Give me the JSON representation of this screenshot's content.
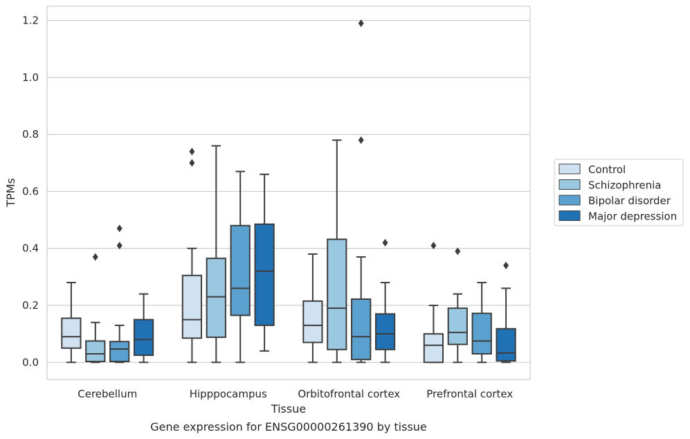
{
  "chart_data": {
    "type": "box",
    "title": "",
    "caption": "Gene expression for ENSG00000261390 by tissue",
    "xlabel": "Tissue",
    "ylabel": "TPMs",
    "ylim": [
      -0.06,
      1.25
    ],
    "yticks": [
      0.0,
      0.2,
      0.4,
      0.6,
      0.8,
      1.0,
      1.2
    ],
    "ytick_labels": [
      "0.0",
      "0.2",
      "0.4",
      "0.6",
      "0.8",
      "1.0",
      "1.2"
    ],
    "grid": "horizontal",
    "legend_position": "right",
    "categories": [
      "Cerebellum",
      "Hipppocampus",
      "Orbitofrontal cortex",
      "Prefrontal cortex"
    ],
    "series": [
      {
        "name": "Control",
        "color": "#d0e1f2",
        "boxes": [
          {
            "whisker_low": 0.0,
            "q1": 0.05,
            "median": 0.09,
            "q3": 0.155,
            "whisker_high": 0.28,
            "outliers": []
          },
          {
            "whisker_low": 0.0,
            "q1": 0.085,
            "median": 0.15,
            "q3": 0.305,
            "whisker_high": 0.4,
            "outliers": [
              0.7,
              0.74
            ]
          },
          {
            "whisker_low": 0.0,
            "q1": 0.07,
            "median": 0.13,
            "q3": 0.215,
            "whisker_high": 0.38,
            "outliers": []
          },
          {
            "whisker_low": 0.0,
            "q1": 0.0,
            "median": 0.06,
            "q3": 0.1,
            "whisker_high": 0.2,
            "outliers": [
              0.41
            ]
          }
        ]
      },
      {
        "name": "Schizophrenia",
        "color": "#9ac8e0",
        "boxes": [
          {
            "whisker_low": 0.0,
            "q1": 0.003,
            "median": 0.03,
            "q3": 0.075,
            "whisker_high": 0.14,
            "outliers": [
              0.37
            ]
          },
          {
            "whisker_low": 0.0,
            "q1": 0.088,
            "median": 0.23,
            "q3": 0.365,
            "whisker_high": 0.76,
            "outliers": []
          },
          {
            "whisker_low": 0.0,
            "q1": 0.045,
            "median": 0.19,
            "q3": 0.432,
            "whisker_high": 0.78,
            "outliers": []
          },
          {
            "whisker_low": 0.0,
            "q1": 0.063,
            "median": 0.105,
            "q3": 0.19,
            "whisker_high": 0.24,
            "outliers": [
              0.39
            ]
          }
        ]
      },
      {
        "name": "Bipolar disorder",
        "color": "#5aa1cf",
        "boxes": [
          {
            "whisker_low": 0.0,
            "q1": 0.003,
            "median": 0.047,
            "q3": 0.073,
            "whisker_high": 0.13,
            "outliers": [
              0.41,
              0.47
            ]
          },
          {
            "whisker_low": 0.0,
            "q1": 0.165,
            "median": 0.26,
            "q3": 0.48,
            "whisker_high": 0.67,
            "outliers": []
          },
          {
            "whisker_low": 0.0,
            "q1": 0.01,
            "median": 0.09,
            "q3": 0.222,
            "whisker_high": 0.37,
            "outliers": [
              0.78,
              1.19
            ]
          },
          {
            "whisker_low": 0.0,
            "q1": 0.03,
            "median": 0.075,
            "q3": 0.172,
            "whisker_high": 0.28,
            "outliers": []
          }
        ]
      },
      {
        "name": "Major depression",
        "color": "#2171b5",
        "boxes": [
          {
            "whisker_low": 0.0,
            "q1": 0.025,
            "median": 0.08,
            "q3": 0.15,
            "whisker_high": 0.24,
            "outliers": []
          },
          {
            "whisker_low": 0.04,
            "q1": 0.13,
            "median": 0.32,
            "q3": 0.485,
            "whisker_high": 0.66,
            "outliers": []
          },
          {
            "whisker_low": 0.0,
            "q1": 0.045,
            "median": 0.1,
            "q3": 0.17,
            "whisker_high": 0.28,
            "outliers": [
              0.42
            ]
          },
          {
            "whisker_low": 0.0,
            "q1": 0.005,
            "median": 0.033,
            "q3": 0.118,
            "whisker_high": 0.26,
            "outliers": [
              0.34
            ]
          }
        ]
      }
    ]
  }
}
